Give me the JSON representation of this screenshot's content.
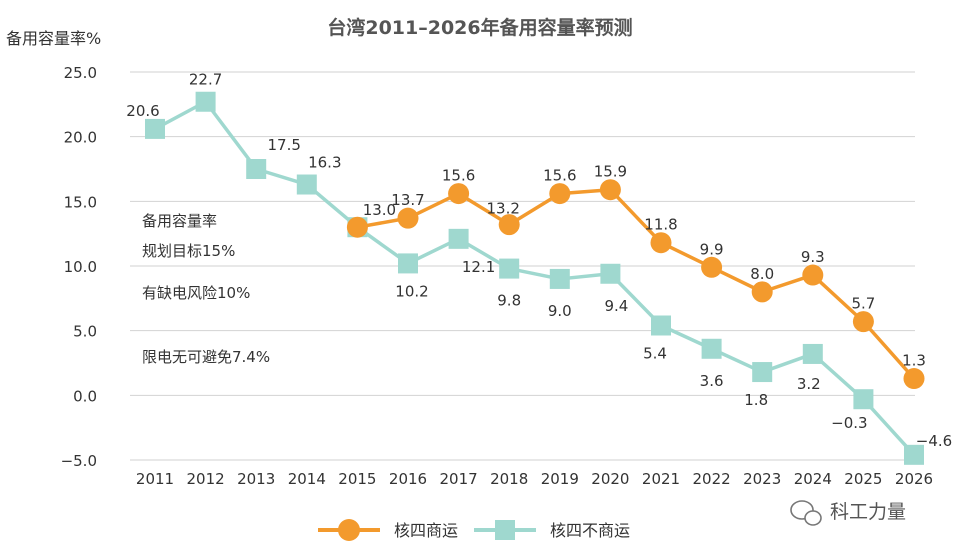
{
  "chart_data": {
    "type": "line",
    "title": "台湾2011–2026年备用容量率预测",
    "ylabel": "备用容量率%",
    "xlabel": "",
    "categories": [
      "2011",
      "2012",
      "2013",
      "2014",
      "2015",
      "2016",
      "2017",
      "2018",
      "2019",
      "2020",
      "2021",
      "2022",
      "2023",
      "2024",
      "2025",
      "2026"
    ],
    "ylim": [
      -5,
      25
    ],
    "yticks": [
      "25.0",
      "20.0",
      "15.0",
      "10.0",
      "5.0",
      "0.0",
      "−5.0"
    ],
    "grid": "horizontal",
    "legend_position": "bottom",
    "series": [
      {
        "name": "核四商运",
        "marker": "circle",
        "color": "#F39A2D",
        "x": [
          "2015",
          "2016",
          "2017",
          "2018",
          "2019",
          "2020",
          "2021",
          "2022",
          "2023",
          "2024",
          "2025",
          "2026"
        ],
        "values": [
          13.0,
          13.7,
          15.6,
          13.2,
          15.6,
          15.9,
          11.8,
          9.9,
          8.0,
          9.3,
          5.7,
          1.3
        ],
        "labels": [
          "",
          "13.7",
          "15.6",
          "13.2",
          "15.6",
          "15.9",
          "11.8",
          "9.9",
          "8.0",
          "9.3",
          "5.7",
          "1.3"
        ]
      },
      {
        "name": "核四不商运",
        "marker": "square",
        "color": "#9FD8CF",
        "x": [
          "2011",
          "2012",
          "2013",
          "2014",
          "2015",
          "2016",
          "2017",
          "2018",
          "2019",
          "2020",
          "2021",
          "2022",
          "2023",
          "2024",
          "2025",
          "2026"
        ],
        "values": [
          20.6,
          22.7,
          17.5,
          16.3,
          13.0,
          10.2,
          12.1,
          9.8,
          9.0,
          9.4,
          5.4,
          3.6,
          1.8,
          3.2,
          -0.3,
          -4.6
        ],
        "labels": [
          "20.6",
          "22.7",
          "17.5",
          "16.3",
          "13.0",
          "10.2",
          "12.1",
          "9.8",
          "9.0",
          "9.4",
          "5.4",
          "3.6",
          "1.8",
          "3.2",
          "−0.3",
          "−4.6"
        ]
      }
    ],
    "annotations": [
      "备用容量率",
      "规划目标15%",
      "有缺电风险10%",
      "限电无可避免7.4%"
    ]
  },
  "watermark": "科工力量",
  "watermark_icon": "wechat-icon"
}
